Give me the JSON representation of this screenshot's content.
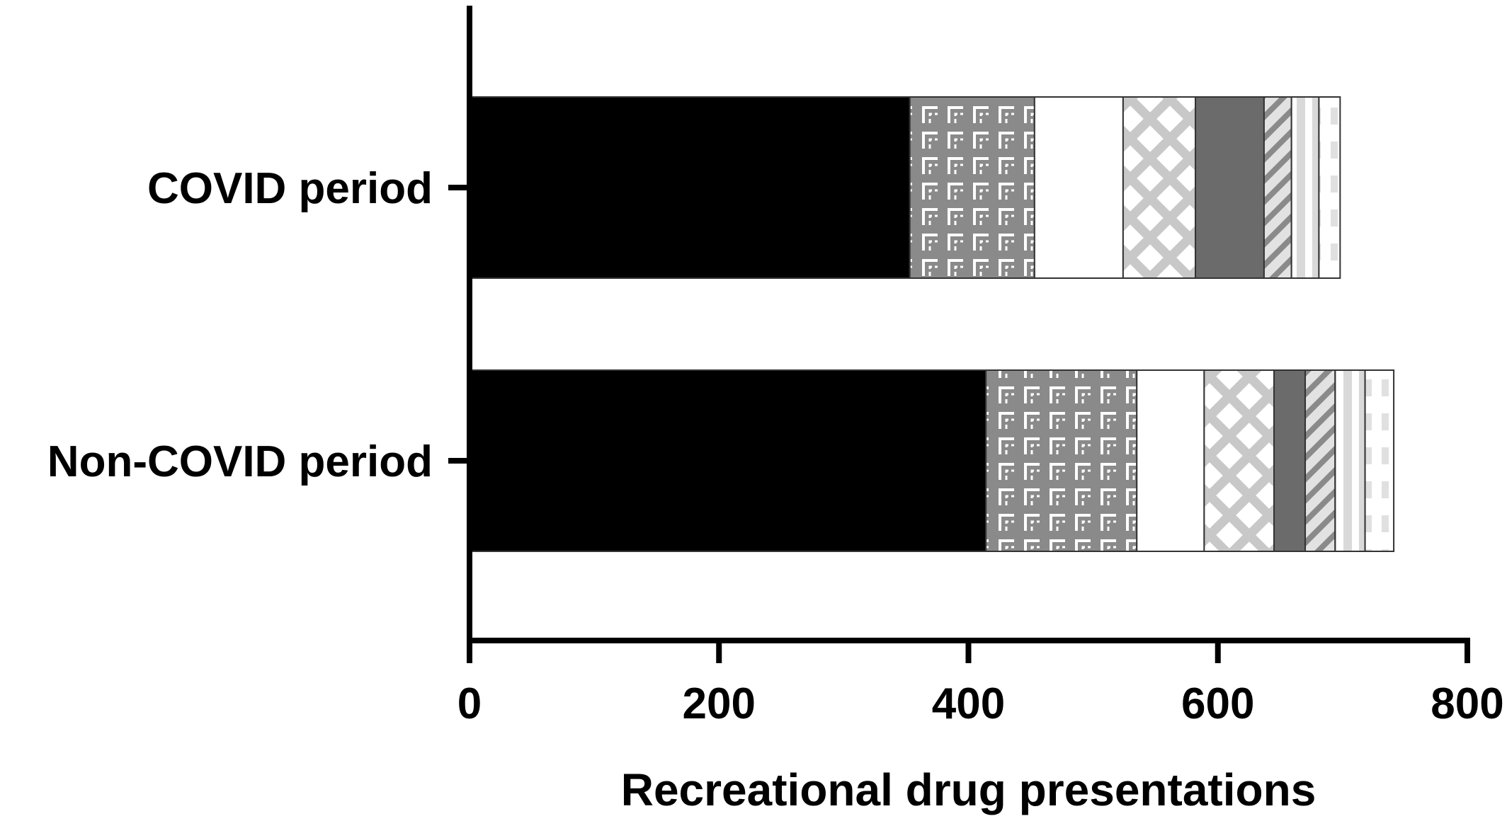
{
  "chart_data": {
    "type": "bar",
    "orientation": "horizontal",
    "stacked": true,
    "categories": [
      "COVID period",
      "Non-COVID period"
    ],
    "series": [
      {
        "pattern": "solid-black",
        "values": [
          353,
          414
        ]
      },
      {
        "pattern": "grey-maze",
        "values": [
          100,
          121
        ]
      },
      {
        "pattern": "white",
        "values": [
          71,
          54
        ]
      },
      {
        "pattern": "light-grey-lattice",
        "values": [
          58,
          56
        ]
      },
      {
        "pattern": "dark-grey",
        "values": [
          55,
          25
        ]
      },
      {
        "pattern": "grey-diagonal-stripes",
        "values": [
          22,
          24
        ]
      },
      {
        "pattern": "light-grey-vertical-bands",
        "values": [
          22,
          24
        ]
      },
      {
        "pattern": "white-dashed",
        "values": [
          17,
          23
        ]
      }
    ],
    "xlabel": "Recreational drug presentations",
    "ylabel": "",
    "xlim": [
      0,
      800
    ],
    "xticks": [
      "0",
      "200",
      "400",
      "600",
      "800"
    ],
    "grid": false,
    "legend": "none"
  },
  "colors": {
    "black": "#000000",
    "grey": "#8a8a8a",
    "dark_grey": "#6b6b6b",
    "light_grey": "#cfcfcf",
    "white": "#ffffff"
  }
}
